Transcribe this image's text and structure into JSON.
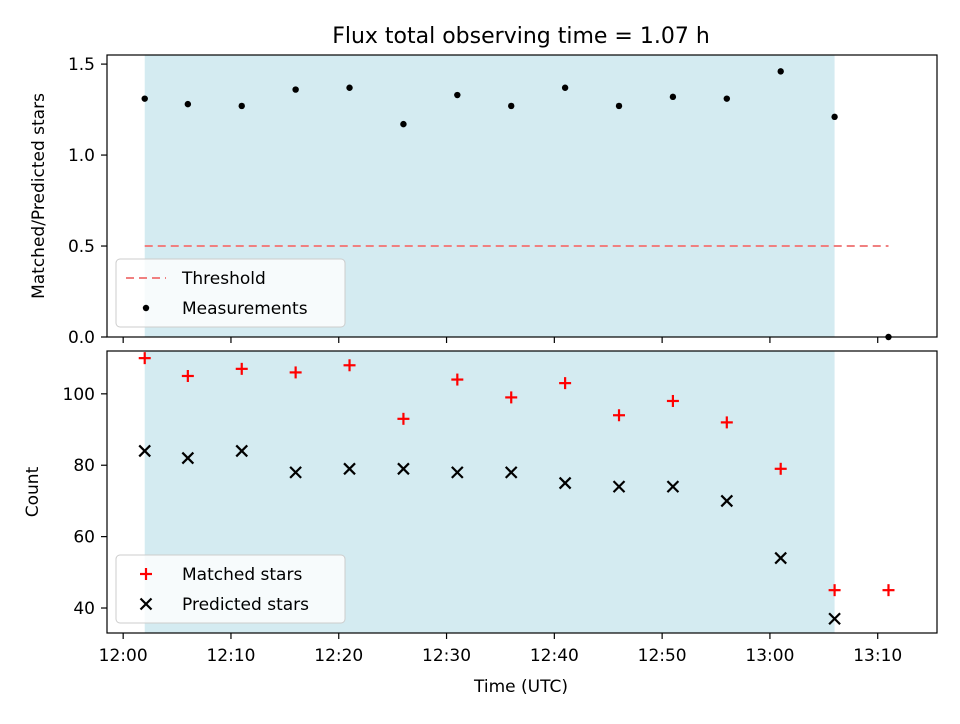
{
  "title": "Flux total observing time = 1.07 h",
  "xlabel": "Time (UTC)",
  "x_ticks": [
    "12:00",
    "12:10",
    "12:20",
    "12:30",
    "12:40",
    "12:50",
    "13:00",
    "13:10"
  ],
  "colors": {
    "shade": "#d4ebf1",
    "threshold": "#f08080",
    "measurements": "#000000",
    "matched": "#ff0000",
    "predicted": "#000000"
  },
  "chart_data": [
    {
      "type": "scatter",
      "ylabel": "Matched/Predicted stars",
      "ylim": [
        0,
        1.55
      ],
      "y_ticks": [
        "0.0",
        "0.5",
        "1.0",
        "1.5"
      ],
      "y_tick_values": [
        0,
        0.5,
        1.0,
        1.5
      ],
      "shaded_span": [
        "12:02",
        "13:06"
      ],
      "legend": "lower-left",
      "threshold": {
        "name": "Threshold",
        "value": 0.5,
        "x": [
          "12:02",
          "13:11"
        ]
      },
      "series": [
        {
          "name": "Measurements",
          "x": [
            "12:02",
            "12:06",
            "12:11",
            "12:16",
            "12:21",
            "12:26",
            "12:31",
            "12:36",
            "12:41",
            "12:46",
            "12:51",
            "12:56",
            "13:01",
            "13:06",
            "13:11"
          ],
          "y": [
            1.31,
            1.28,
            1.27,
            1.36,
            1.37,
            1.17,
            1.33,
            1.27,
            1.37,
            1.27,
            1.32,
            1.31,
            1.46,
            1.21,
            0.0
          ]
        }
      ]
    },
    {
      "type": "scatter",
      "ylabel": "Count",
      "ylim": [
        33,
        112
      ],
      "y_ticks": [
        "40",
        "60",
        "80",
        "100"
      ],
      "y_tick_values": [
        40,
        60,
        80,
        100
      ],
      "shaded_span": [
        "12:02",
        "13:06"
      ],
      "legend": "lower-left",
      "series": [
        {
          "name": "Matched stars",
          "marker": "+",
          "x": [
            "12:02",
            "12:06",
            "12:11",
            "12:16",
            "12:21",
            "12:26",
            "12:31",
            "12:36",
            "12:41",
            "12:46",
            "12:51",
            "12:56",
            "13:01",
            "13:06",
            "13:11"
          ],
          "y": [
            110,
            105,
            107,
            106,
            108,
            93,
            104,
            99,
            103,
            94,
            98,
            92,
            79,
            45,
            45
          ]
        },
        {
          "name": "Predicted stars",
          "marker": "x",
          "x": [
            "12:02",
            "12:06",
            "12:11",
            "12:16",
            "12:21",
            "12:26",
            "12:31",
            "12:36",
            "12:41",
            "12:46",
            "12:51",
            "12:56",
            "13:01",
            "13:06"
          ],
          "y": [
            84,
            82,
            84,
            78,
            79,
            79,
            78,
            78,
            75,
            74,
            74,
            70,
            54,
            37
          ]
        }
      ]
    }
  ]
}
